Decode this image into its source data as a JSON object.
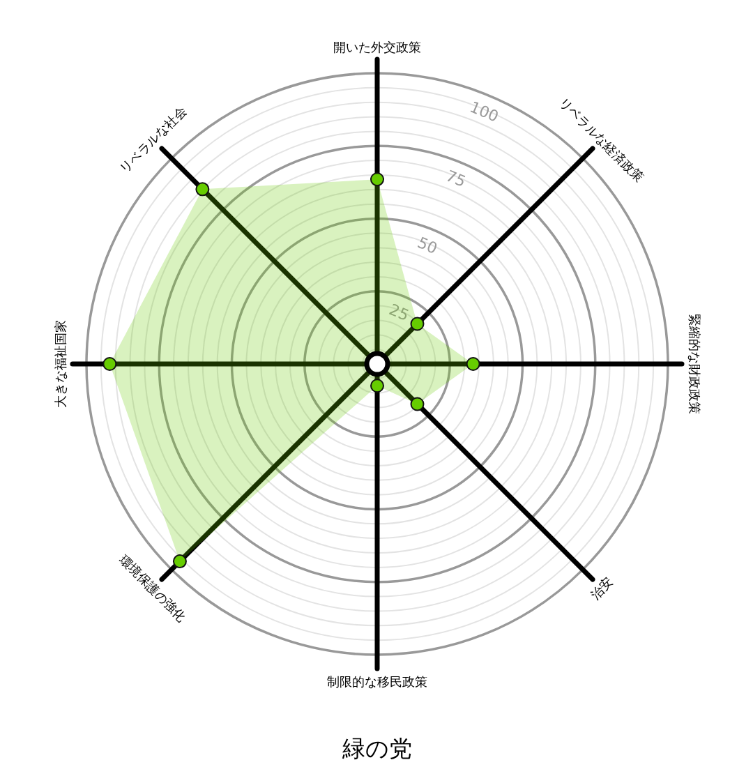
{
  "chart_data": {
    "type": "radar",
    "title": "緑の党",
    "categories": [
      "開いた外交政策",
      "リベラルな経済政策",
      "緊縮的な財政政策",
      "治安",
      "制限的な移民政策",
      "環境保護の強化",
      "大きな福祉国家",
      "リベラルな社会"
    ],
    "series": [
      {
        "color": "#66cc00",
        "values": [
          63.5,
          19.5,
          33,
          19.5,
          7.5,
          96,
          92,
          85
        ]
      }
    ],
    "ylim": [
      0,
      100
    ],
    "yticks": [
      25,
      50,
      75,
      100
    ],
    "grid": true,
    "marker": "circle"
  }
}
